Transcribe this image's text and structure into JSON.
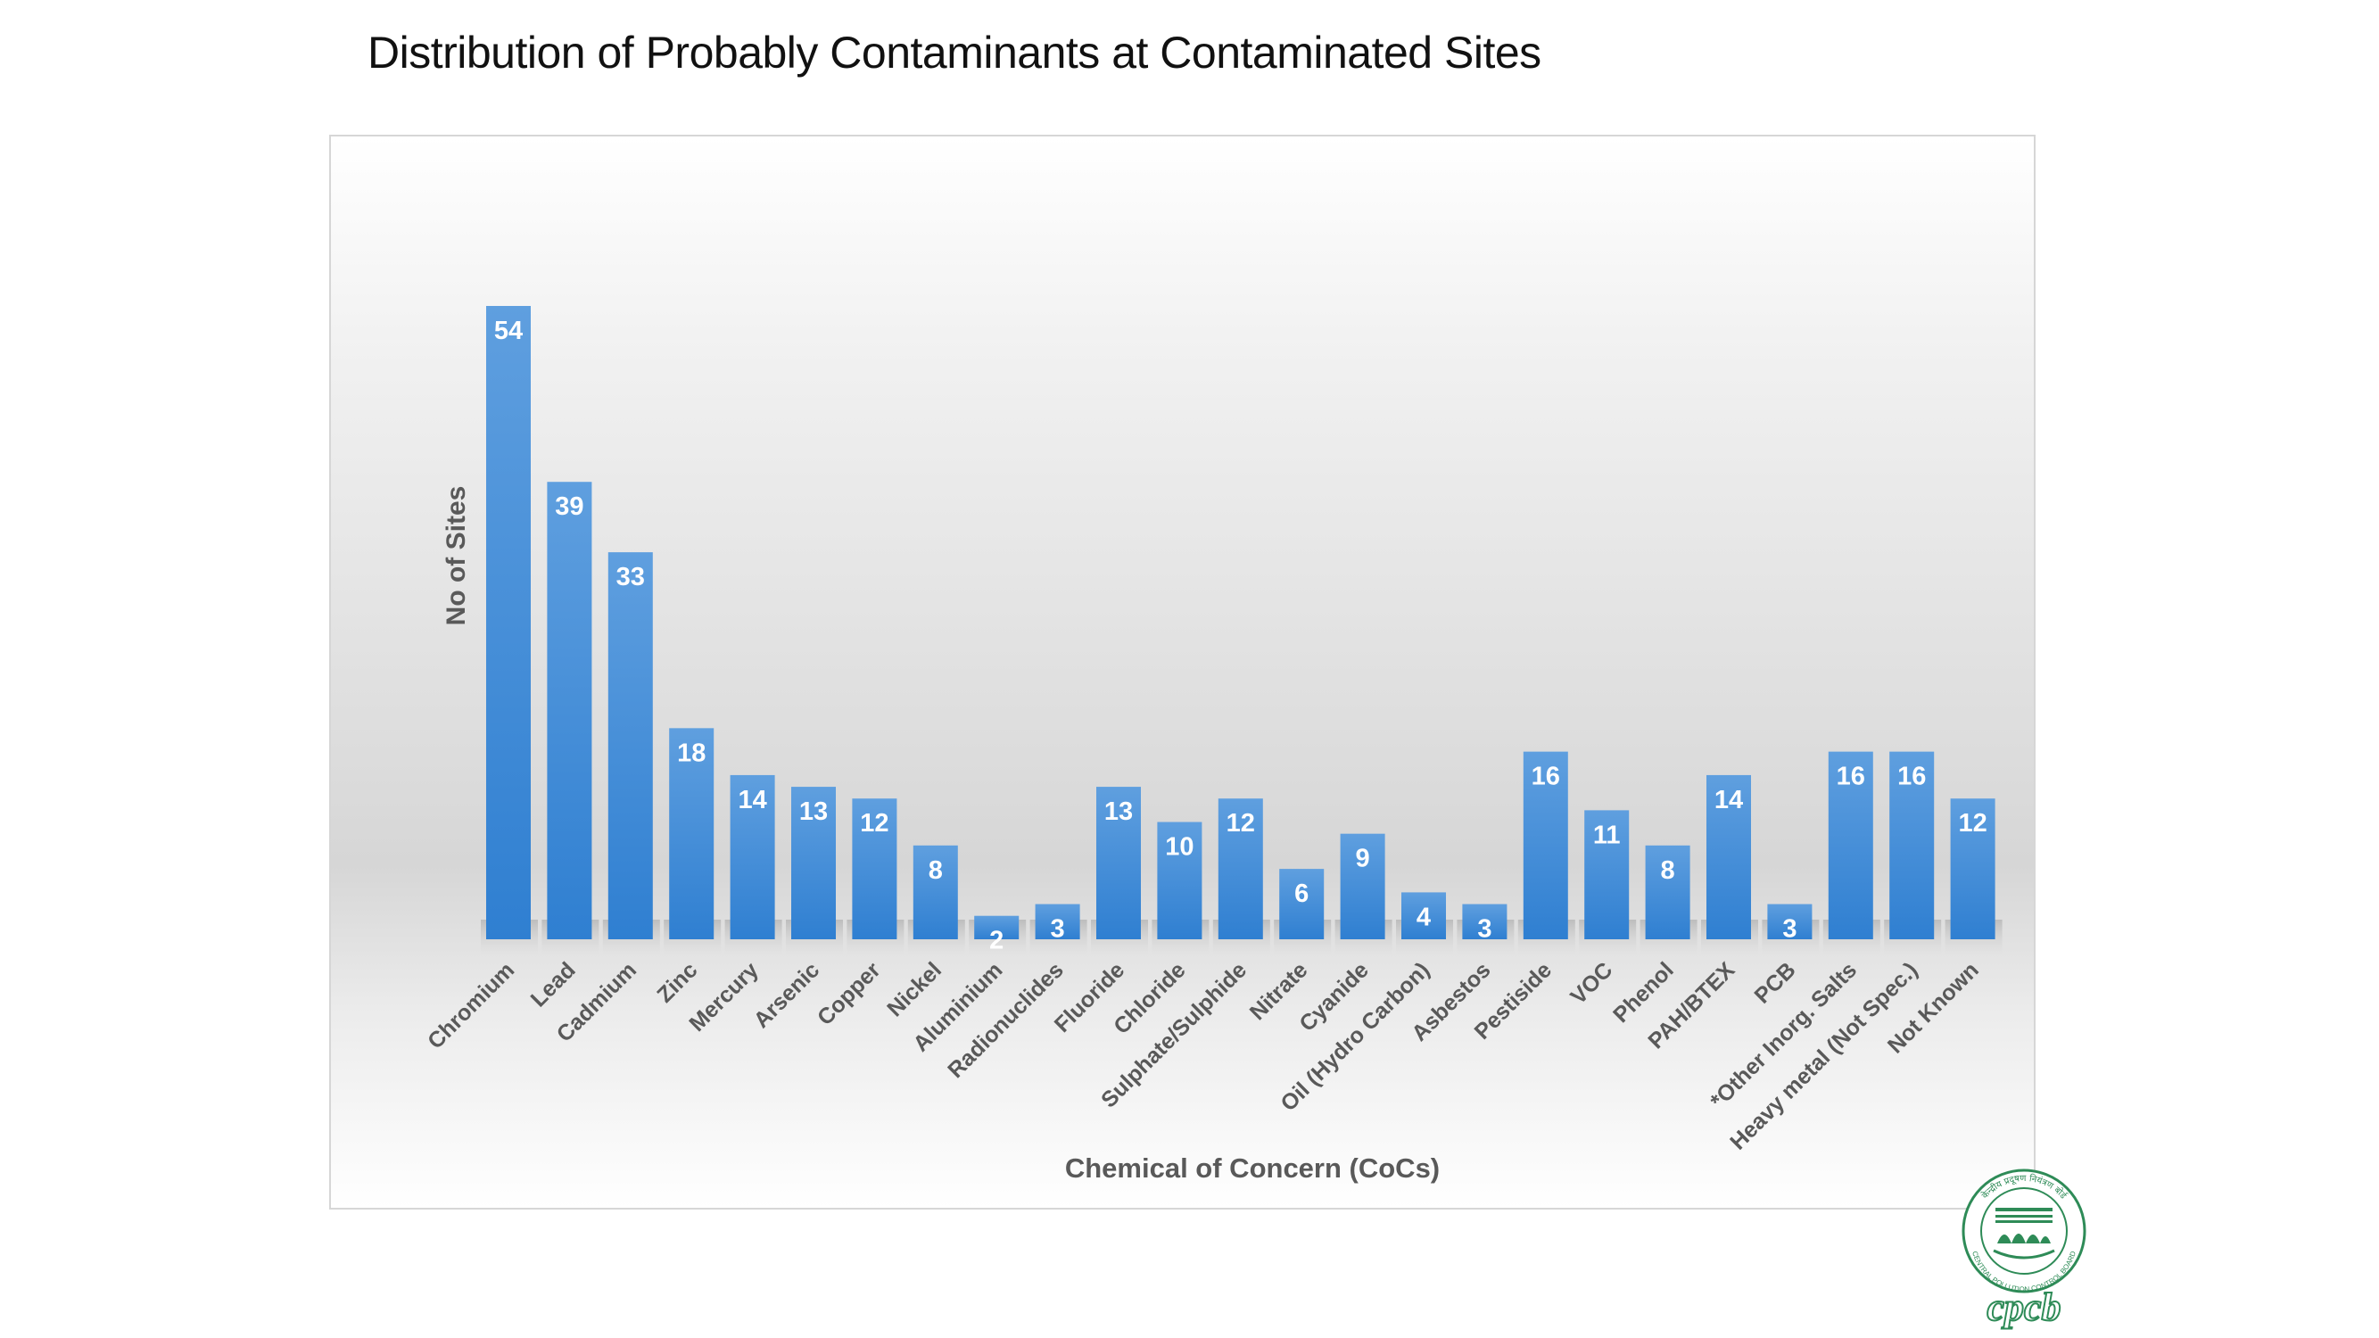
{
  "title": "Distribution of Probably Contaminants at Contaminated Sites",
  "chart_data": {
    "type": "bar",
    "title": "Distribution of Probably Contaminants at Contaminated Sites",
    "xlabel": "Chemical of Concern (CoCs)",
    "ylabel": "No of Sites",
    "categories": [
      "Chromium",
      "Lead",
      "Cadmium",
      "Zinc",
      "Mercury",
      "Arsenic",
      "Copper",
      "Nickel",
      "Aluminium",
      "Radionuclides",
      "Fluoride",
      "Chloride",
      "Sulphate/Sulphide",
      "Nitrate",
      "Cyanide",
      "Oil (Hydro Carbon)",
      "Asbestos",
      "Pestiside",
      "VOC",
      "Phenol",
      "PAH/BTEX",
      "PCB",
      "*Other Inorg. Salts",
      "Heavy metal (Not Spec.)",
      "Not Known"
    ],
    "values": [
      54,
      39,
      33,
      18,
      14,
      13,
      12,
      8,
      2,
      3,
      13,
      10,
      12,
      6,
      9,
      4,
      3,
      16,
      11,
      8,
      14,
      3,
      16,
      16,
      12
    ],
    "ylim": [
      0,
      54
    ],
    "grid": false,
    "legend": "none",
    "data_labels": true,
    "bar_color": "#3f8dd8"
  },
  "logo": {
    "text": "cpcb",
    "hindi_arc": "केन्द्रीय प्रदूषण नियंत्रण बोर्ड",
    "english_arc": "CENTRAL POLLUTION CONTROL BOARD",
    "color": "#2e8b57"
  }
}
